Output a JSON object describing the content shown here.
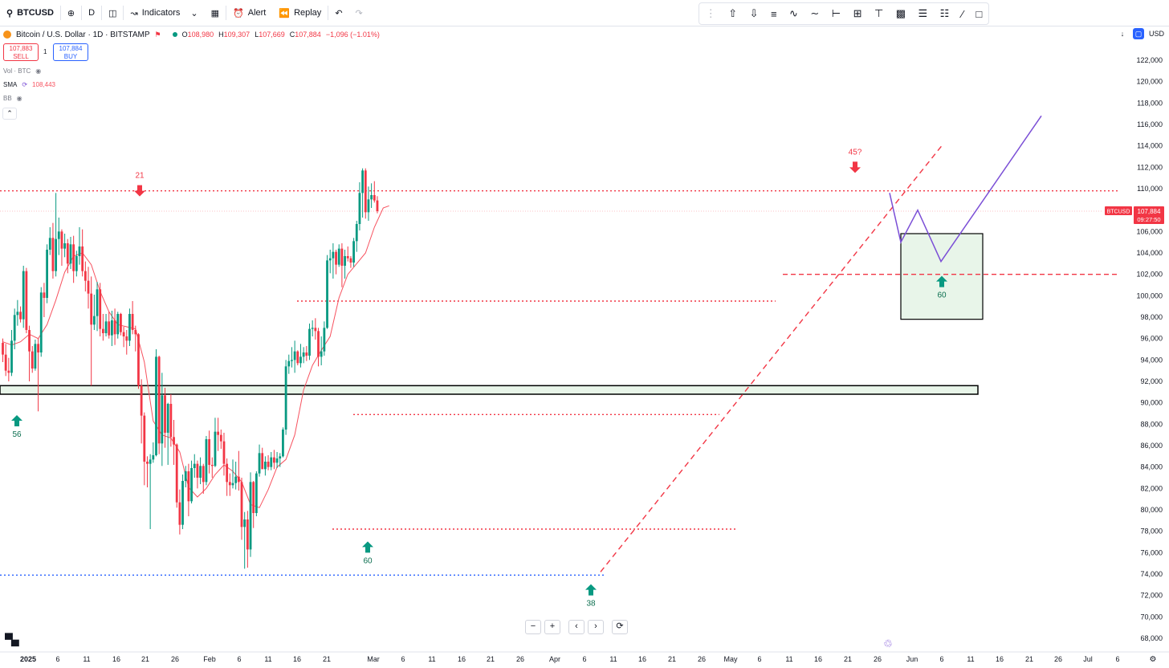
{
  "toolbar": {
    "symbol": "BTCUSD",
    "interval": "D",
    "indicators_label": "Indicators",
    "alert_label": "Alert",
    "replay_label": "Replay"
  },
  "legend": {
    "title": "Bitcoin / U.S. Dollar · 1D · BITSTAMP",
    "open_label": "O",
    "open": "108,980",
    "high_label": "H",
    "high": "109,307",
    "low_label": "L",
    "low": "107,669",
    "close_label": "C",
    "close": "107,884",
    "change": "−1,096 (−1.01%)"
  },
  "trade": {
    "sell_price": "107,883",
    "sell_label": "SELL",
    "buy_price": "107,884",
    "buy_label": "BUY",
    "spread": "1"
  },
  "indicators": {
    "vol_label": "Vol · BTC",
    "sma_label": "SMA",
    "sma_value": "108,443",
    "bb_label": "BB"
  },
  "right": {
    "currency": "USD"
  },
  "price_tag": {
    "symbol": "BTCUSD",
    "price": "107,884",
    "countdown": "09:27:50"
  },
  "colors": {
    "up": "#089981",
    "down": "#f23645",
    "sma": "#f7525f",
    "forecast": "#7b4fd6",
    "level": "#f23645",
    "support": "#2962ff"
  },
  "chart_data": {
    "type": "candlestick",
    "y_axis": {
      "min": 68000,
      "max": 122000,
      "step": 2000,
      "ticks": [
        "122,000",
        "120,000",
        "118,000",
        "116,000",
        "114,000",
        "112,000",
        "110,000",
        "108,000",
        "106,000",
        "104,000",
        "102,000",
        "100,000",
        "98,000",
        "96,000",
        "94,000",
        "92,000",
        "90,000",
        "88,000",
        "86,000",
        "84,000",
        "82,000",
        "80,000",
        "78,000",
        "76,000",
        "74,000",
        "72,000",
        "70,000",
        "68,000"
      ]
    },
    "x_axis": {
      "ticks": [
        "2025",
        "6",
        "11",
        "16",
        "21",
        "26",
        "Feb",
        "6",
        "11",
        "16",
        "21",
        "Mar",
        "6",
        "11",
        "16",
        "21",
        "26",
        "Apr",
        "6",
        "11",
        "16",
        "21",
        "26",
        "May",
        "6",
        "11",
        "16",
        "21",
        "26",
        "Jun",
        "6",
        "11",
        "16",
        "21",
        "26",
        "Jul",
        "6"
      ]
    },
    "candles": [
      [
        95600,
        96000,
        93800,
        94500
      ],
      [
        94500,
        95500,
        92500,
        93000
      ],
      [
        93000,
        94200,
        92000,
        92800
      ],
      [
        92800,
        96800,
        92500,
        95800
      ],
      [
        95800,
        98800,
        95000,
        98200
      ],
      [
        98200,
        99600,
        97200,
        98500
      ],
      [
        98500,
        99000,
        97500,
        97800
      ],
      [
        97800,
        102800,
        97000,
        102300
      ],
      [
        102300,
        102600,
        96500,
        96800
      ],
      [
        96800,
        97200,
        92000,
        94800
      ],
      [
        94800,
        95300,
        92800,
        93200
      ],
      [
        93200,
        95900,
        93000,
        95500
      ],
      [
        95500,
        96000,
        89200,
        94700
      ],
      [
        94700,
        100800,
        94300,
        100300
      ],
      [
        100300,
        101200,
        98000,
        99800
      ],
      [
        99800,
        104800,
        99300,
        104300
      ],
      [
        104300,
        106400,
        103800,
        105400
      ],
      [
        105400,
        106800,
        101600,
        102300
      ],
      [
        102300,
        109600,
        101800,
        105300
      ],
      [
        105300,
        107300,
        103800,
        106000
      ],
      [
        106000,
        106200,
        102800,
        104400
      ],
      [
        104400,
        105800,
        103600,
        104900
      ],
      [
        104900,
        105300,
        102100,
        103000
      ],
      [
        103000,
        105500,
        102500,
        104800
      ],
      [
        104800,
        105600,
        101200,
        102300
      ],
      [
        102300,
        104200,
        101800,
        103700
      ],
      [
        103700,
        106400,
        102900,
        104600
      ],
      [
        104600,
        106200,
        101800,
        102300
      ],
      [
        102300,
        103200,
        100400,
        101400
      ],
      [
        101400,
        102700,
        98800,
        100200
      ],
      [
        100200,
        101800,
        91600,
        97300
      ],
      [
        97300,
        100100,
        96800,
        98100
      ],
      [
        98100,
        101300,
        96700,
        100600
      ],
      [
        100600,
        101200,
        96200,
        96900
      ],
      [
        96900,
        98300,
        95800,
        96500
      ],
      [
        96500,
        98300,
        96200,
        97600
      ],
      [
        97600,
        98500,
        96000,
        96300
      ],
      [
        96300,
        98600,
        95300,
        97700
      ],
      [
        97700,
        98800,
        95400,
        96400
      ],
      [
        96400,
        98500,
        96000,
        98300
      ],
      [
        98300,
        98400,
        96300,
        96600
      ],
      [
        96600,
        97100,
        95200,
        96200
      ],
      [
        96200,
        96800,
        94500,
        95800
      ],
      [
        95800,
        98800,
        95300,
        98300
      ],
      [
        98300,
        99500,
        96400,
        96800
      ],
      [
        96800,
        97200,
        94800,
        96400
      ],
      [
        96400,
        96500,
        91300,
        91600
      ],
      [
        91600,
        92200,
        86200,
        88800
      ],
      [
        88800,
        89100,
        82300,
        84500
      ],
      [
        84500,
        85000,
        82100,
        84300
      ],
      [
        84300,
        85200,
        78200,
        84700
      ],
      [
        84700,
        86300,
        84400,
        85100
      ],
      [
        85100,
        95000,
        85000,
        94300
      ],
      [
        94300,
        94400,
        85200,
        86200
      ],
      [
        86200,
        92800,
        84100,
        90700
      ],
      [
        90700,
        91400,
        85800,
        87200
      ],
      [
        87200,
        90000,
        84200,
        89900
      ],
      [
        89900,
        90800,
        85900,
        86800
      ],
      [
        86800,
        88400,
        84200,
        86100
      ],
      [
        86100,
        86200,
        80200,
        80700
      ],
      [
        80700,
        81900,
        77700,
        78600
      ],
      [
        78600,
        83300,
        78200,
        82700
      ],
      [
        82700,
        84100,
        82100,
        83600
      ],
      [
        83600,
        84300,
        79400,
        80800
      ],
      [
        80800,
        84600,
        80600,
        83900
      ],
      [
        83900,
        85200,
        83000,
        84300
      ],
      [
        84300,
        84600,
        82000,
        83000
      ],
      [
        83000,
        84900,
        82400,
        84100
      ],
      [
        84100,
        84300,
        81500,
        82600
      ],
      [
        82600,
        86900,
        82300,
        86600
      ],
      [
        86600,
        87400,
        83400,
        84200
      ],
      [
        84200,
        84900,
        83000,
        84100
      ],
      [
        84100,
        88600,
        84000,
        87300
      ],
      [
        87300,
        88600,
        85500,
        87000
      ],
      [
        87000,
        87500,
        85700,
        86400
      ],
      [
        86400,
        87200,
        83200,
        84300
      ],
      [
        84300,
        84800,
        81300,
        82600
      ],
      [
        82600,
        83400,
        81300,
        82300
      ],
      [
        82300,
        84700,
        82000,
        82500
      ],
      [
        82500,
        84500,
        81900,
        83100
      ],
      [
        83100,
        85500,
        81800,
        82600
      ],
      [
        82600,
        83000,
        77200,
        78400
      ],
      [
        78400,
        79800,
        74500,
        79100
      ],
      [
        79100,
        79900,
        74600,
        76300
      ],
      [
        76300,
        83500,
        75600,
        82600
      ],
      [
        82600,
        82700,
        78300,
        79700
      ],
      [
        79700,
        83600,
        79400,
        83400
      ],
      [
        83400,
        86100,
        83100,
        85300
      ],
      [
        85300,
        85800,
        83800,
        83800
      ],
      [
        83800,
        85000,
        83200,
        84500
      ],
      [
        84500,
        85100,
        83700,
        84000
      ],
      [
        84000,
        85400,
        83700,
        84900
      ],
      [
        84900,
        85600,
        83800,
        84400
      ],
      [
        84400,
        85400,
        83900,
        84800
      ],
      [
        84800,
        85300,
        84000,
        85000
      ],
      [
        85000,
        87700,
        84900,
        87500
      ],
      [
        87500,
        94000,
        87000,
        93400
      ],
      [
        93400,
        94500,
        92700,
        93900
      ],
      [
        93900,
        95200,
        93300,
        94000
      ],
      [
        94000,
        95800,
        92800,
        94800
      ],
      [
        94800,
        94900,
        93500,
        93700
      ],
      [
        93700,
        95500,
        93300,
        94300
      ],
      [
        94300,
        95200,
        93700,
        94700
      ],
      [
        94700,
        95300,
        93900,
        94400
      ],
      [
        94400,
        97400,
        94000,
        96900
      ],
      [
        96900,
        97700,
        96200,
        97000
      ],
      [
        97000,
        97900,
        95900,
        96700
      ],
      [
        96700,
        97000,
        93400,
        94300
      ],
      [
        94300,
        96200,
        93500,
        94800
      ],
      [
        94800,
        97600,
        94400,
        97000
      ],
      [
        97000,
        103800,
        96900,
        103300
      ],
      [
        103300,
        104300,
        102100,
        103500
      ],
      [
        103500,
        104900,
        101600,
        104100
      ],
      [
        104100,
        104300,
        102000,
        102900
      ],
      [
        102900,
        104800,
        102700,
        104400
      ],
      [
        104400,
        104900,
        100800,
        102800
      ],
      [
        102800,
        104300,
        101600,
        103700
      ],
      [
        103700,
        104600,
        103200,
        103500
      ],
      [
        103500,
        103700,
        102600,
        103100
      ],
      [
        103100,
        105400,
        102700,
        105100
      ],
      [
        105100,
        107000,
        104100,
        106700
      ],
      [
        106700,
        110600,
        106100,
        109600
      ],
      [
        109600,
        111900,
        107300,
        111700
      ],
      [
        111700,
        111900,
        107200,
        107800
      ],
      [
        107800,
        110200,
        107000,
        109000
      ],
      [
        109000,
        110500,
        108200,
        109400
      ],
      [
        109400,
        110700,
        108700,
        108900
      ],
      [
        108900,
        109300,
        107700,
        107900
      ]
    ],
    "sma": [
      [
        0,
        95700
      ],
      [
        3,
        95400
      ],
      [
        6,
        95700
      ],
      [
        9,
        96400
      ],
      [
        12,
        96000
      ],
      [
        15,
        97300
      ],
      [
        18,
        99600
      ],
      [
        21,
        102200
      ],
      [
        24,
        103700
      ],
      [
        27,
        104000
      ],
      [
        30,
        102900
      ],
      [
        33,
        100400
      ],
      [
        36,
        98500
      ],
      [
        39,
        97300
      ],
      [
        42,
        97100
      ],
      [
        45,
        96900
      ],
      [
        48,
        93800
      ],
      [
        51,
        88300
      ],
      [
        54,
        87000
      ],
      [
        57,
        86700
      ],
      [
        60,
        85400
      ],
      [
        63,
        82100
      ],
      [
        66,
        81200
      ],
      [
        69,
        82000
      ],
      [
        72,
        83300
      ],
      [
        75,
        84200
      ],
      [
        78,
        83600
      ],
      [
        81,
        82600
      ],
      [
        84,
        80500
      ],
      [
        87,
        80200
      ],
      [
        90,
        81900
      ],
      [
        93,
        84000
      ],
      [
        96,
        84700
      ],
      [
        99,
        87000
      ],
      [
        102,
        91200
      ],
      [
        105,
        93500
      ],
      [
        108,
        94900
      ],
      [
        111,
        96200
      ],
      [
        114,
        99800
      ],
      [
        117,
        102000
      ],
      [
        120,
        103000
      ],
      [
        123,
        104000
      ],
      [
        126,
        106400
      ],
      [
        129,
        108200
      ],
      [
        131,
        108400
      ]
    ],
    "levels": [
      {
        "price": 109800,
        "from": "2025",
        "to": "end",
        "style": "dotted",
        "color": "red"
      },
      {
        "price": 99500,
        "from": "Feb 12",
        "to": "Apr 30",
        "style": "dotted",
        "color": "red"
      },
      {
        "price": 88900,
        "from": "Mar 19",
        "to": "Apr 26",
        "style": "dotted",
        "color": "red"
      },
      {
        "price": 78200,
        "from": "Feb 20",
        "to": "May 1",
        "style": "dotted",
        "color": "red"
      },
      {
        "price": 73900,
        "from": "2025",
        "to": "Apr 8",
        "style": "dotted",
        "color": "blue"
      },
      {
        "price": 102000,
        "from": "May 12",
        "to": "Jun 30",
        "style": "dashed",
        "color": "red"
      }
    ],
    "annotations": [
      {
        "text": "21",
        "type": "arrow-down",
        "price": 111000
      },
      {
        "text": "45?",
        "type": "arrow-down",
        "price": 113200
      },
      {
        "text": "56",
        "type": "arrow-up",
        "price": 89000
      },
      {
        "text": "60",
        "type": "arrow-up",
        "price": 77200
      },
      {
        "text": "38",
        "type": "arrow-up",
        "price": 73200
      },
      {
        "text": "60",
        "type": "arrow-up",
        "price": 102000
      }
    ],
    "trendline": {
      "from": [
        74200,
        "Apr 9"
      ],
      "to": [
        114200,
        "Jun 3"
      ],
      "style": "dashed",
      "color": "red"
    },
    "zones": [
      {
        "low": 90800,
        "high": 91600,
        "type": "support-band"
      },
      {
        "low": 97800,
        "high": 105800,
        "type": "target-box"
      }
    ],
    "forecast_path": [
      [
        109600,
        "May 28"
      ],
      [
        105000,
        "May 31"
      ],
      [
        108000,
        "Jun 3"
      ],
      [
        103200,
        "Jun 6"
      ],
      [
        116800,
        "Jun 21"
      ]
    ]
  }
}
